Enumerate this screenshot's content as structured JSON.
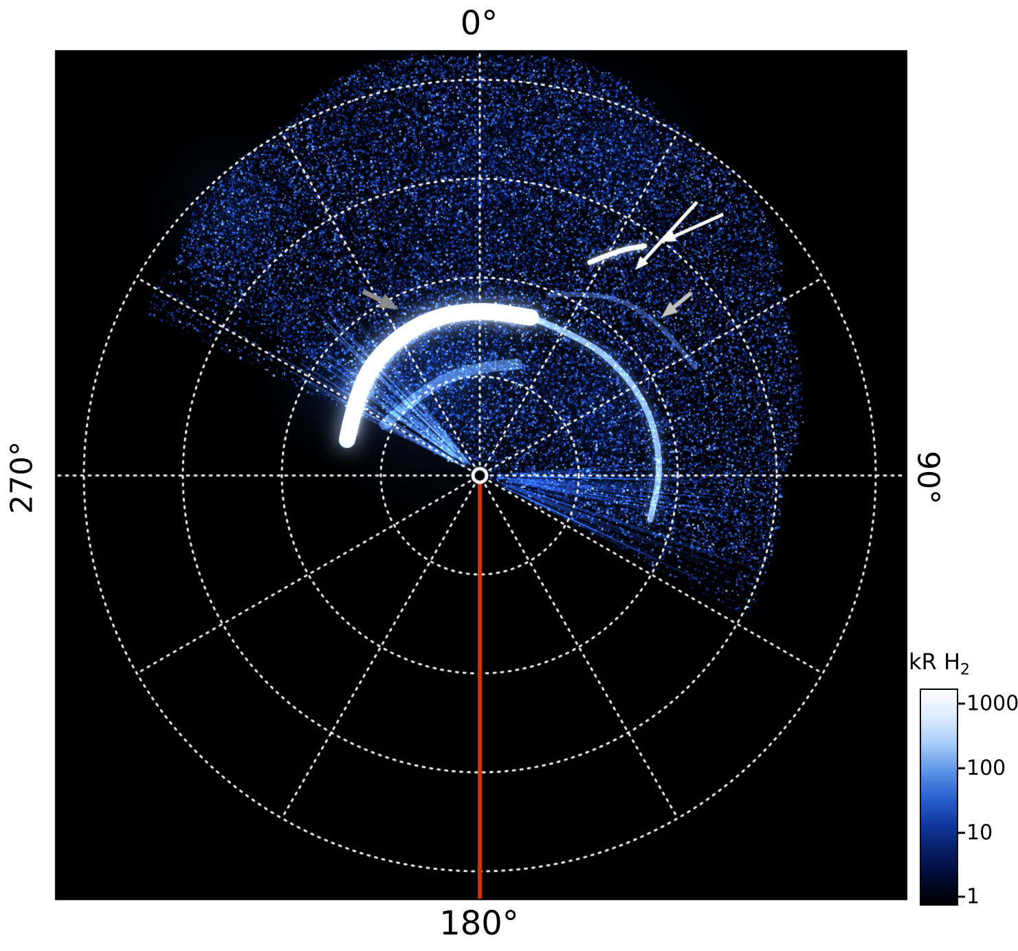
{
  "figure": {
    "angle_labels": {
      "top": "0°",
      "right": "90°",
      "bottom": "180°",
      "left": "270°"
    },
    "colorbar": {
      "title_main": "kR H",
      "title_sub": "2",
      "ticks": [
        "1000",
        "100",
        "10",
        "1"
      ]
    },
    "meridian_color": "#d43400",
    "annotations": {
      "arrows": [
        {
          "name": "white-arrow-1",
          "color": "#ffffff",
          "width": 5,
          "from": [
            1014,
            294
          ],
          "to": [
            924,
            393
          ]
        },
        {
          "name": "white-arrow-2",
          "color": "#ffffff",
          "width": 5,
          "from": [
            1052,
            312
          ],
          "to": [
            963,
            352
          ]
        },
        {
          "name": "gray-arrowhead-left",
          "color": "#8c8c8c",
          "width": 7,
          "from": [
            528,
            424
          ],
          "to": [
            580,
            450
          ]
        },
        {
          "name": "gray-arrowhead-right",
          "color": "#c2c2c2",
          "width": 6,
          "from": [
            1006,
            426
          ],
          "to": [
            962,
            462
          ]
        }
      ]
    }
  },
  "chart_data": {
    "type": "heatmap",
    "projection": "polar",
    "title": "",
    "angle_tick_labels": [
      "0°",
      "90°",
      "180°",
      "270°"
    ],
    "radial_grid_rings": 4,
    "spoke_step_deg": 30,
    "grid_line_style": "dotted",
    "grid_color": "#ffffff",
    "background_color": "#000000",
    "colorbar": {
      "label": "kR H₂",
      "scale": "log",
      "min": 1,
      "max": 1000,
      "ticks": [
        1000,
        100,
        10,
        1
      ],
      "stops_top_to_bottom": [
        "#ffffff",
        "#dcebff",
        "#a8cdf8",
        "#5e96e8",
        "#2a62cf",
        "#1238a0",
        "#071d66",
        "#020a33",
        "#000000"
      ]
    },
    "data_coverage": {
      "bearing_start_deg": -64,
      "bearing_end_deg": 118,
      "note": "UV auroral image fills the upper tilted half-sector; the rest of the polar plot is black"
    },
    "meridian_line": {
      "angle_deg": 180,
      "color": "#d43400"
    },
    "features": [
      {
        "name": "main auroral oval bright arc",
        "approx_intensity_kR": 1000
      },
      {
        "name": "oval extension toward 90°",
        "approx_intensity_kR": 100
      },
      {
        "name": "polar arc indicated by white arrows",
        "approx_intensity_kR": 100
      },
      {
        "name": "oval segments indicated by gray arrowheads",
        "approx_intensity_kR": 100
      }
    ]
  }
}
